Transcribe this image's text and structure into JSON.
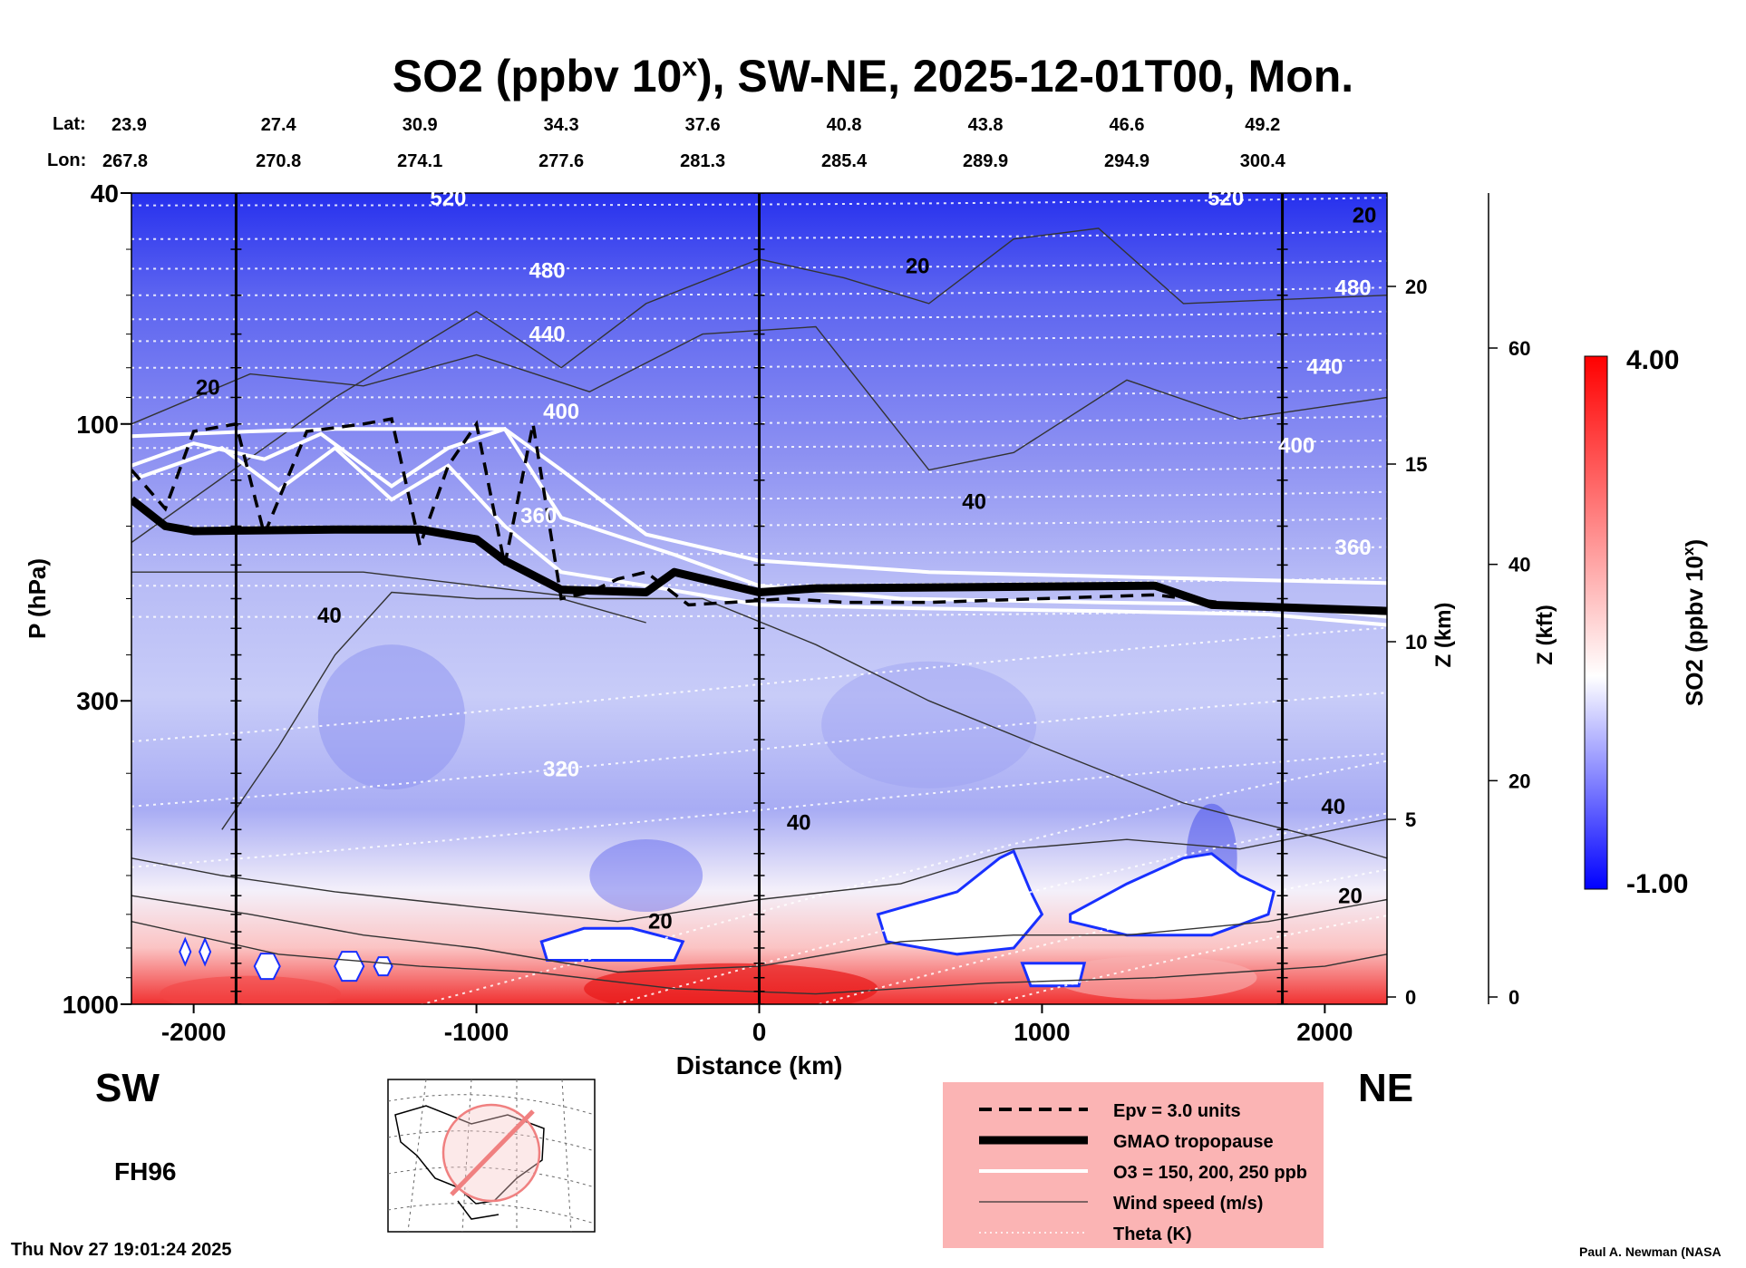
{
  "colors": {
    "background": "#ffffff",
    "so2_low": "#0000ff",
    "so2_mid": "#ffffff",
    "so2_high": "#ff0000",
    "legend_bg": "#fbb4b4"
  },
  "chart_data": {
    "type": "heatmap",
    "title_prefix": "SO2 (ppbv 10",
    "title_sup": "x",
    "title_suffix": "), SW-NE, 2025-12-01T00, Mon.",
    "xlabel": "Distance (km)",
    "ylabel": "P (hPa)",
    "xlim": [
      -2220,
      2220
    ],
    "ylim_hPa": [
      1000,
      40
    ],
    "x_ticks": [
      -2000,
      -1000,
      0,
      1000,
      2000
    ],
    "x_tick_labels": [
      "-2000",
      "-1000",
      "0",
      "1000",
      "2000"
    ],
    "p_ticks": [
      40,
      100,
      300,
      1000
    ],
    "p_tick_labels": [
      "40",
      "100",
      "300",
      "1000"
    ],
    "lat_label": "Lat:",
    "lon_label": "Lon:",
    "lat_values": [
      "23.9",
      "27.4",
      "30.9",
      "34.3",
      "37.6",
      "40.8",
      "43.8",
      "46.6",
      "49.2"
    ],
    "lon_values": [
      "267.8",
      "270.8",
      "274.1",
      "277.6",
      "281.3",
      "285.4",
      "289.9",
      "294.9",
      "300.4"
    ],
    "lat_lon_x_km": [
      -2220,
      -1700,
      -1200,
      -700,
      -200,
      300,
      800,
      1300,
      1780
    ],
    "vertical_line_x_km": [
      -1850,
      0,
      1850
    ],
    "z_km_axis": {
      "label": "Z (km)",
      "ticks": [
        0,
        5,
        10,
        15,
        20
      ],
      "labels": [
        "0",
        "5",
        "10",
        "15",
        "20"
      ]
    },
    "z_kft_axis": {
      "label": "Z (kft)",
      "ticks": [
        0,
        20,
        40,
        60
      ],
      "labels": [
        "0",
        "20",
        "40",
        "60"
      ]
    },
    "colorbar": {
      "label_prefix": "SO2 (ppbv 10",
      "label_sup": "x",
      "label_suffix": ")",
      "min": -1.0,
      "max": 4.0,
      "min_label": "-1.00",
      "max_label": "4.00"
    },
    "tropopause_hPa": {
      "x": [
        -2220,
        -2100,
        -2000,
        -1500,
        -1200,
        -1000,
        -900,
        -700,
        -400,
        -300,
        0,
        200,
        1400,
        1600,
        2220
      ],
      "p": [
        135,
        150,
        153,
        152,
        152,
        158,
        172,
        193,
        195,
        180,
        195,
        192,
        190,
        205,
        210
      ]
    },
    "epv_3_hPa": {
      "x": [
        -2220,
        -2100,
        -2000,
        -1850,
        -1750,
        -1600,
        -1400,
        -1300,
        -1200,
        -1100,
        -1000,
        -900,
        -800,
        -700,
        -600,
        -500,
        -400,
        -250,
        -100,
        100,
        300,
        600,
        1000,
        1400,
        1700,
        2000,
        2220
      ],
      "p": [
        120,
        140,
        103,
        100,
        155,
        103,
        100,
        98,
        162,
        118,
        100,
        175,
        100,
        200,
        195,
        185,
        180,
        205,
        203,
        200,
        203,
        203,
        200,
        197,
        205,
        210,
        212
      ]
    },
    "ozone_contours_hPa": [
      {
        "name": "O3 150",
        "x": [
          -2220,
          -1800,
          -1500,
          -1100,
          -900,
          -700,
          -400,
          0,
          600,
          1200,
          1800,
          2220
        ],
        "p": [
          105,
          103,
          102,
          102,
          102,
          120,
          155,
          172,
          180,
          183,
          186,
          188
        ]
      },
      {
        "name": "O3 200",
        "x": [
          -2220,
          -2000,
          -1750,
          -1550,
          -1300,
          -1100,
          -900,
          -700,
          -300,
          0,
          500,
          1200,
          1800,
          2220
        ],
        "p": [
          118,
          108,
          115,
          104,
          128,
          110,
          102,
          145,
          168,
          190,
          200,
          203,
          205,
          215
        ]
      },
      {
        "name": "O3 250",
        "x": [
          -2220,
          -1900,
          -1700,
          -1500,
          -1300,
          -1100,
          -900,
          -700,
          -400,
          0,
          600,
          1200,
          1800,
          2220
        ],
        "p": [
          125,
          110,
          130,
          110,
          135,
          118,
          150,
          180,
          190,
          205,
          208,
          210,
          213,
          222
        ]
      }
    ],
    "theta_labels": [
      {
        "text": "520",
        "x_km": -1100,
        "p": 42
      },
      {
        "text": "480",
        "x_km": -750,
        "p": 56
      },
      {
        "text": "440",
        "x_km": -750,
        "p": 72
      },
      {
        "text": "400",
        "x_km": -700,
        "p": 98
      },
      {
        "text": "360",
        "x_km": -780,
        "p": 148
      },
      {
        "text": "320",
        "x_km": -700,
        "p": 405
      },
      {
        "text": "520",
        "x_km": 1650,
        "p": 42
      },
      {
        "text": "480",
        "x_km": 2100,
        "p": 60
      },
      {
        "text": "440",
        "x_km": 2000,
        "p": 82
      },
      {
        "text": "400",
        "x_km": 1900,
        "p": 112
      },
      {
        "text": "360",
        "x_km": 2100,
        "p": 168
      }
    ],
    "wind_labels": [
      {
        "text": "20",
        "x_km": -1950,
        "p": 89
      },
      {
        "text": "20",
        "x_km": 560,
        "p": 55
      },
      {
        "text": "20",
        "x_km": 2140,
        "p": 45
      },
      {
        "text": "40",
        "x_km": 760,
        "p": 140
      },
      {
        "text": "40",
        "x_km": -1520,
        "p": 220
      },
      {
        "text": "40",
        "x_km": 140,
        "p": 500
      },
      {
        "text": "40",
        "x_km": 2030,
        "p": 470
      },
      {
        "text": "20",
        "x_km": -350,
        "p": 740
      },
      {
        "text": "20",
        "x_km": 2090,
        "p": 670
      }
    ]
  },
  "labels": {
    "sw": "SW",
    "ne": "NE",
    "forecast_hour": "FH96",
    "timestamp": "Thu Nov 27 19:01:24 2025",
    "credit": "Paul A. Newman (NASA"
  },
  "legend": {
    "items": [
      {
        "label": "Epv = 3.0 units",
        "style": "dashed-black"
      },
      {
        "label": "GMAO tropopause",
        "style": "thick-black"
      },
      {
        "label": "O3 = 150, 200, 250 ppb",
        "style": "white"
      },
      {
        "label": "Wind speed (m/s)",
        "style": "thin-black"
      },
      {
        "label": "Theta (K)",
        "style": "dotted-white"
      }
    ]
  },
  "inset_map": {
    "name": "cross-section map"
  }
}
